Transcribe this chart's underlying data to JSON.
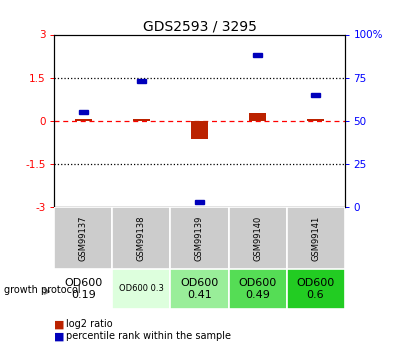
{
  "title": "GDS2593 / 3295",
  "samples": [
    "GSM99137",
    "GSM99138",
    "GSM99139",
    "GSM99140",
    "GSM99141"
  ],
  "log2_ratio": [
    0.05,
    0.05,
    -0.65,
    0.28,
    0.06
  ],
  "percentile_rank": [
    55,
    73,
    3,
    88,
    65
  ],
  "ylim_left": [
    -3,
    3
  ],
  "ylim_right": [
    0,
    100
  ],
  "yticks_left": [
    -3,
    -1.5,
    0,
    1.5,
    3
  ],
  "yticks_right": [
    0,
    25,
    50,
    75,
    100
  ],
  "hline_dotted": [
    -1.5,
    1.5
  ],
  "hline_red_dashed": 0,
  "bar_color_red": "#bb2200",
  "bar_color_blue": "#0000bb",
  "growth_protocol_labels": [
    "OD600\n0.19",
    "OD600 0.3",
    "OD600\n0.41",
    "OD600\n0.49",
    "OD600\n0.6"
  ],
  "growth_protocol_colors": [
    "#ffffff",
    "#ddffdd",
    "#99ee99",
    "#55dd55",
    "#22cc22"
  ],
  "growth_protocol_text_sizes": [
    8,
    6,
    8,
    8,
    8
  ],
  "label_log2": "log2 ratio",
  "label_pct": "percentile rank within the sample",
  "table_bg": "#cccccc",
  "x_positions": [
    0,
    1,
    2,
    3,
    4
  ]
}
